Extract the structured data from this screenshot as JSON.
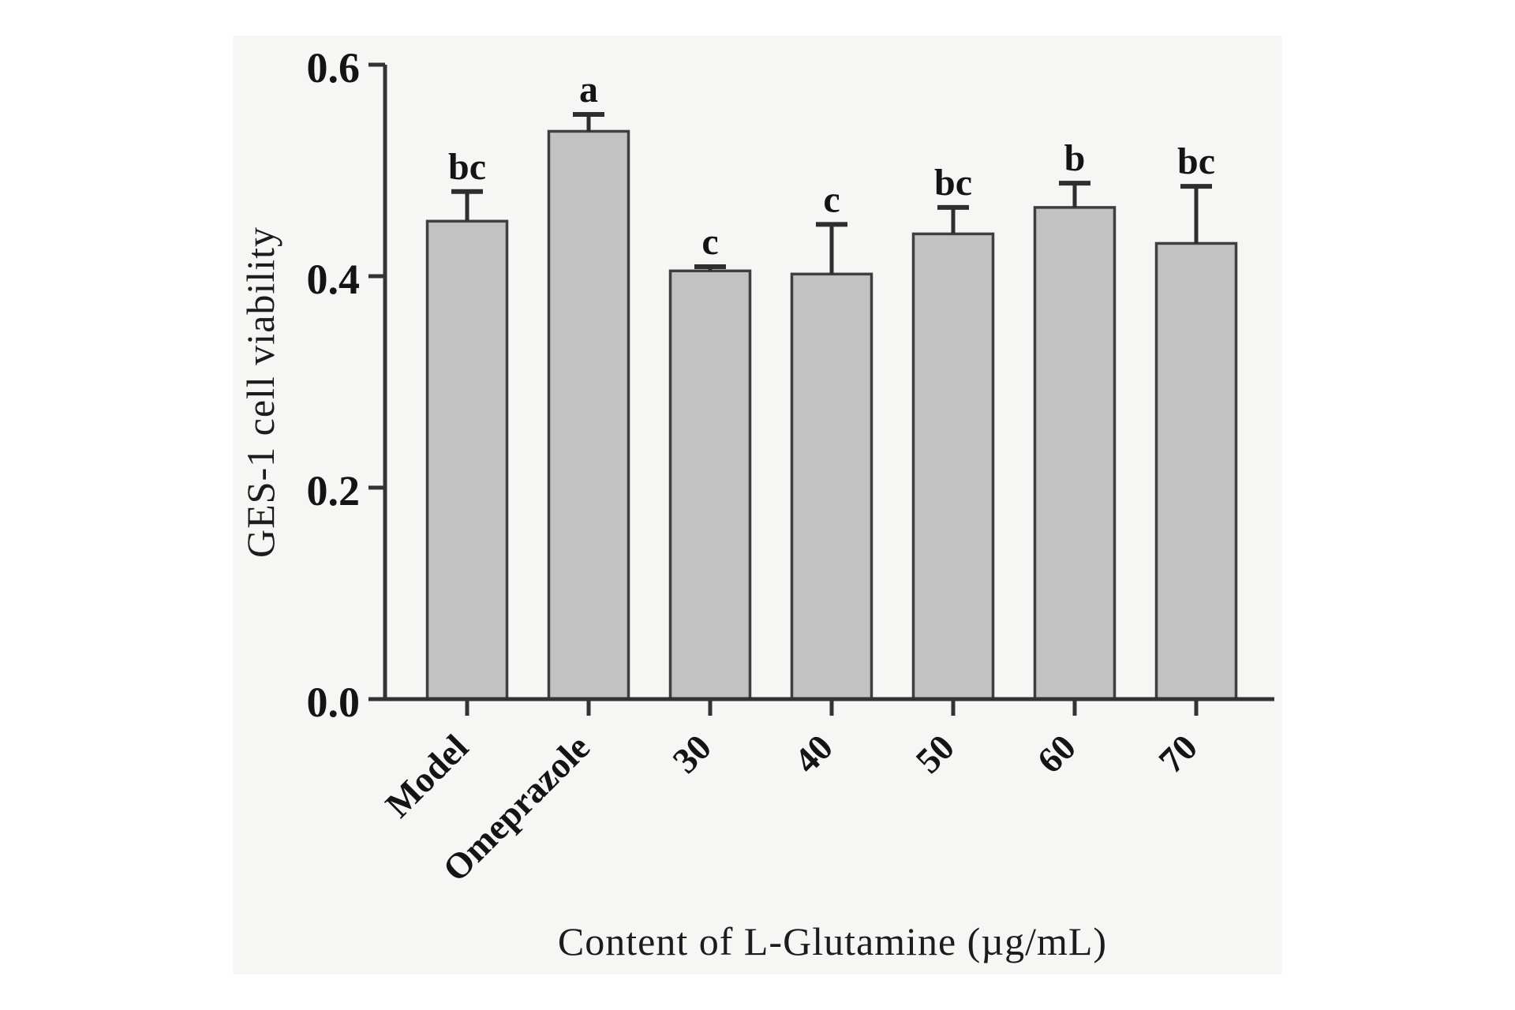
{
  "figure": {
    "page_background": "#ffffff",
    "panel_background": "#f6f6f4"
  },
  "chart_data": {
    "type": "bar",
    "title": "",
    "xlabel": "Content of L-Glutamine (µg/mL)",
    "ylabel": "GES-1 cell viability",
    "categories": [
      "Model",
      "Omeprazole",
      "30",
      "40",
      "50",
      "60",
      "70"
    ],
    "values": [
      0.452,
      0.537,
      0.405,
      0.402,
      0.44,
      0.465,
      0.431
    ],
    "errors_upper": [
      0.028,
      0.016,
      0.004,
      0.047,
      0.025,
      0.023,
      0.054
    ],
    "sig_letters": [
      "bc",
      "a",
      "c",
      "c",
      "bc",
      "b",
      "bc"
    ],
    "ylim": [
      0.0,
      0.6
    ],
    "yticks": [
      0.0,
      0.2,
      0.4,
      0.6
    ],
    "ytick_labels": [
      "0.0",
      "0.2",
      "0.4",
      "0.6"
    ],
    "xtick_rotation_deg": 45,
    "grid": false,
    "legend": "none",
    "bar_color": "#c2c2c2",
    "bar_edge_color": "#3f3f3f",
    "error_bar_color": "#2e2e2e",
    "axis_color": "#333333",
    "text_color": "#141414"
  }
}
